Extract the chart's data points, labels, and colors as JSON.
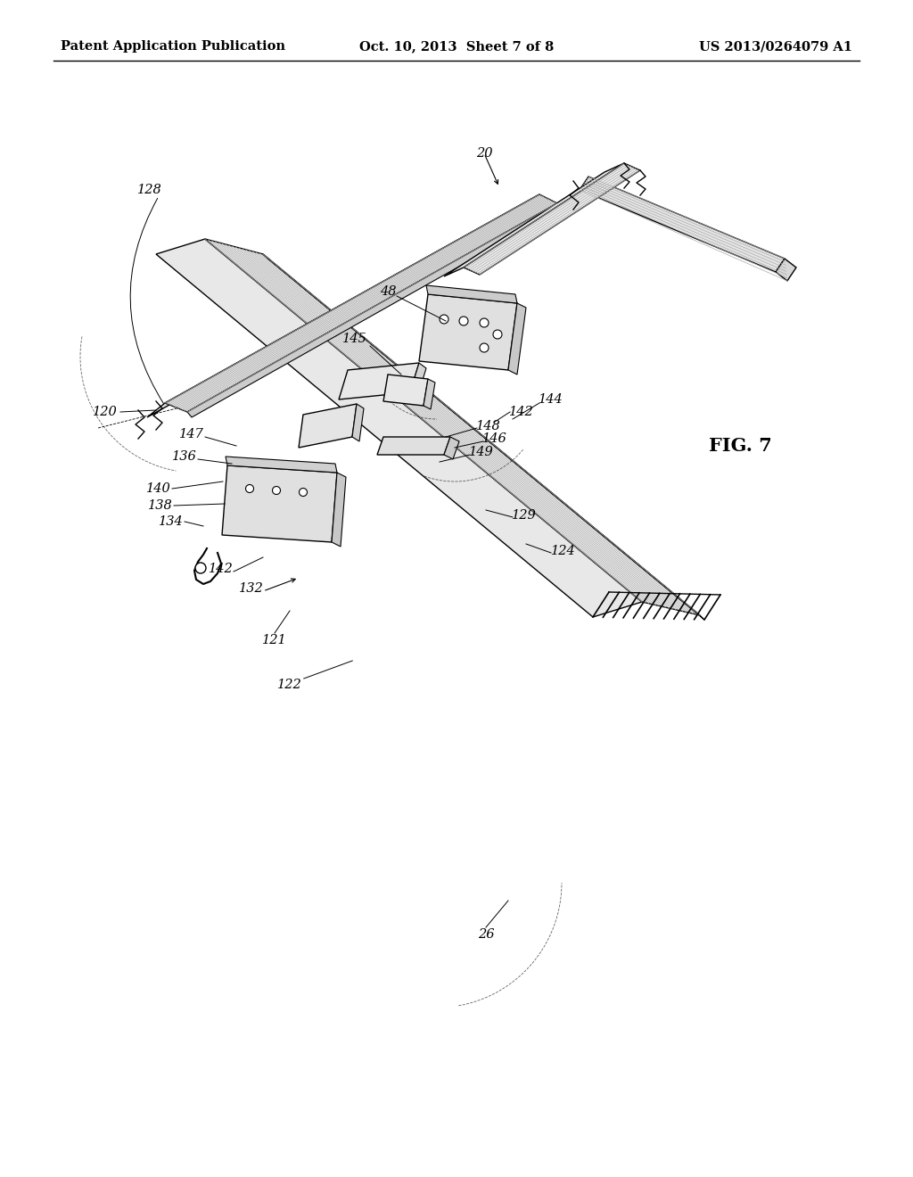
{
  "title_left": "Patent Application Publication",
  "title_center": "Oct. 10, 2013  Sheet 7 of 8",
  "title_right": "US 2013/0264079 A1",
  "fig_label": "FIG. 7",
  "bg_color": "#ffffff",
  "line_color": "#000000"
}
